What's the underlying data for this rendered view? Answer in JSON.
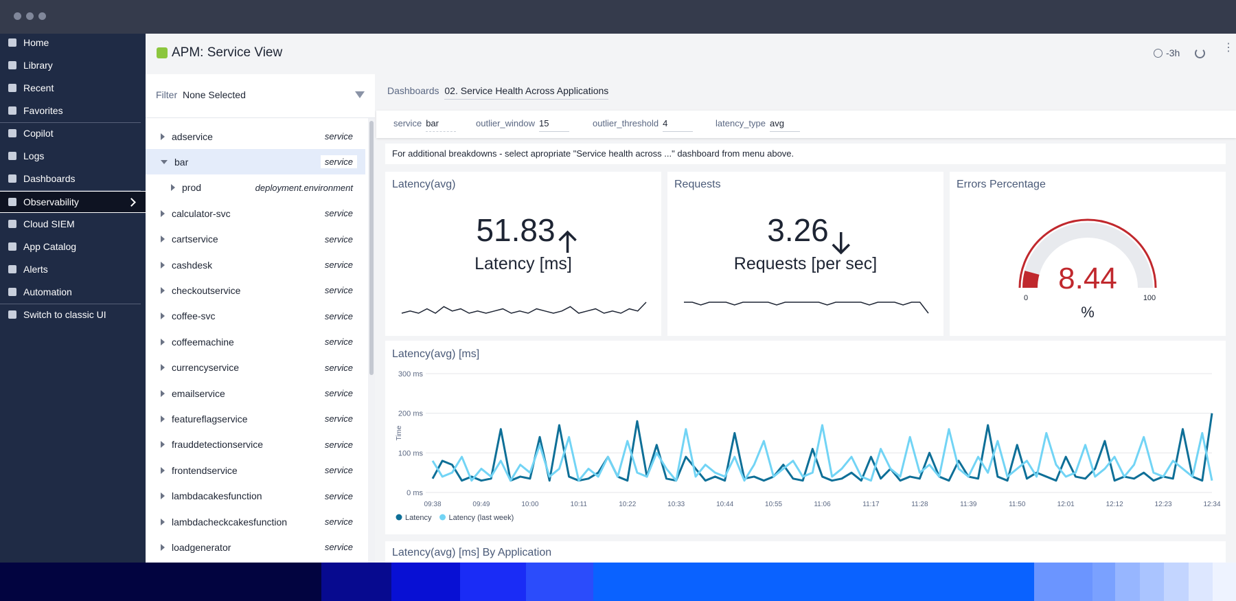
{
  "sidebar": {
    "groups": [
      {
        "items": [
          "Home",
          "Library",
          "Recent",
          "Favorites"
        ]
      },
      {
        "items": [
          "Copilot",
          "Logs",
          "Dashboards"
        ]
      },
      {
        "items": [
          "Observability",
          "Cloud SIEM",
          "App Catalog",
          "Alerts",
          "Automation"
        ],
        "active": 0
      },
      {
        "items": [
          "Switch to classic UI"
        ]
      }
    ]
  },
  "header": {
    "title": "APM: Service View",
    "time_range": "-3h"
  },
  "filter": {
    "label": "Filter",
    "value": "None Selected"
  },
  "tree": [
    {
      "name": "adservice",
      "tag": "service"
    },
    {
      "name": "bar",
      "tag": "service",
      "expanded": true,
      "selected": true,
      "children": [
        {
          "name": "prod",
          "tag": "deployment.environment"
        }
      ]
    },
    {
      "name": "calculator-svc",
      "tag": "service"
    },
    {
      "name": "cartservice",
      "tag": "service"
    },
    {
      "name": "cashdesk",
      "tag": "service"
    },
    {
      "name": "checkoutservice",
      "tag": "service"
    },
    {
      "name": "coffee-svc",
      "tag": "service"
    },
    {
      "name": "coffeemachine",
      "tag": "service"
    },
    {
      "name": "currencyservice",
      "tag": "service"
    },
    {
      "name": "emailservice",
      "tag": "service"
    },
    {
      "name": "featureflagservice",
      "tag": "service"
    },
    {
      "name": "frauddetectionservice",
      "tag": "service"
    },
    {
      "name": "frontendservice",
      "tag": "service"
    },
    {
      "name": "lambdacakesfunction",
      "tag": "service"
    },
    {
      "name": "lambdacheckcakesfunction",
      "tag": "service"
    },
    {
      "name": "loadgenerator",
      "tag": "service"
    }
  ],
  "dashboards": {
    "label": "Dashboards",
    "value": "02. Service Health Across Applications"
  },
  "params": [
    {
      "name": "service",
      "value": "bar"
    },
    {
      "name": "outlier_window",
      "value": "15"
    },
    {
      "name": "outlier_threshold",
      "value": "4"
    },
    {
      "name": "latency_type",
      "value": "avg"
    }
  ],
  "note": "For additional breakdowns - select apropriate \"Service health across ...\" dashboard from menu above.",
  "panels": {
    "latency": {
      "title": "Latency(avg)",
      "value": 51.83,
      "unit": "Latency [ms]",
      "trend": "up",
      "spark": [
        3,
        4,
        3,
        5,
        3,
        6,
        4,
        5,
        3,
        4,
        3,
        4,
        5,
        3,
        4,
        3,
        5,
        4,
        3,
        4,
        6,
        3,
        4,
        5,
        3,
        4,
        3,
        5,
        4,
        8
      ]
    },
    "requests": {
      "title": "Requests",
      "value": 3.26,
      "unit": "Requests [per sec]",
      "trend": "down",
      "spark": [
        5,
        5,
        4,
        5,
        5,
        5,
        4,
        5,
        5,
        5,
        5,
        4,
        5,
        5,
        5,
        5,
        5,
        4,
        5,
        5,
        5,
        5,
        4,
        5,
        5,
        5,
        4,
        5,
        5,
        1
      ]
    },
    "errors": {
      "title": "Errors Percentage",
      "value": 8.44,
      "unit": "%",
      "min": 0,
      "max": 100,
      "color": "#c0282d"
    }
  },
  "chart_data": {
    "type": "line",
    "title": "Latency(avg) [ms]",
    "y_label": "Time",
    "categories": [
      "09:38",
      null,
      null,
      null,
      null,
      "09:49",
      null,
      null,
      null,
      null,
      "10:00",
      null,
      null,
      null,
      null,
      "10:11",
      null,
      null,
      null,
      null,
      "10:22",
      null,
      null,
      null,
      null,
      "10:33",
      null,
      null,
      null,
      null,
      "10:44",
      null,
      null,
      null,
      null,
      "10:55",
      null,
      null,
      null,
      null,
      "11:06",
      null,
      null,
      null,
      null,
      "11:17",
      null,
      null,
      null,
      null,
      "11:28",
      null,
      null,
      null,
      null,
      "11:39",
      null,
      null,
      null,
      null,
      "11:50",
      null,
      null,
      null,
      null,
      "12:01",
      null,
      null,
      null,
      null,
      "12:12",
      null,
      null,
      null,
      null,
      "12:23",
      null,
      null,
      null,
      null,
      "12:34"
    ],
    "ylim": [
      0,
      300
    ],
    "yticks": [
      {
        "value": 0,
        "label": "0 ms"
      },
      {
        "value": 100,
        "label": "100 ms"
      },
      {
        "value": 200,
        "label": "200 ms"
      },
      {
        "value": 300,
        "label": "300 ms"
      }
    ],
    "grid": true,
    "series": [
      {
        "name": "Latency",
        "color": "#0e6f97",
        "values": [
          35,
          80,
          70,
          30,
          40,
          30,
          35,
          160,
          30,
          40,
          35,
          140,
          30,
          170,
          40,
          30,
          35,
          50,
          90,
          40,
          30,
          180,
          40,
          120,
          35,
          30,
          90,
          60,
          30,
          40,
          30,
          150,
          35,
          40,
          30,
          40,
          70,
          35,
          30,
          110,
          40,
          30,
          35,
          50,
          30,
          90,
          35,
          60,
          30,
          40,
          35,
          100,
          40,
          30,
          80,
          40,
          35,
          170,
          40,
          30,
          120,
          35,
          50,
          40,
          30,
          90,
          40,
          35,
          60,
          130,
          30,
          40,
          35,
          50,
          30,
          40,
          35,
          160,
          40,
          30,
          200
        ]
      },
      {
        "name": "Latency (last week)",
        "color": "#72d4f5",
        "values": [
          80,
          40,
          50,
          90,
          30,
          60,
          40,
          80,
          30,
          70,
          50,
          120,
          40,
          60,
          140,
          30,
          60,
          40,
          90,
          40,
          130,
          50,
          40,
          100,
          60,
          30,
          160,
          40,
          70,
          50,
          40,
          90,
          30,
          70,
          130,
          40,
          60,
          80,
          40,
          50,
          170,
          40,
          60,
          90,
          40,
          30,
          110,
          60,
          40,
          140,
          50,
          70,
          40,
          160,
          60,
          40,
          90,
          50,
          130,
          40,
          60,
          80,
          40,
          150,
          70,
          40,
          50,
          120,
          40,
          60,
          90,
          40,
          70,
          140,
          50,
          40,
          80,
          60,
          40,
          150,
          30
        ]
      }
    ]
  },
  "section": {
    "title": "Latency(avg) [ms] By Application"
  }
}
